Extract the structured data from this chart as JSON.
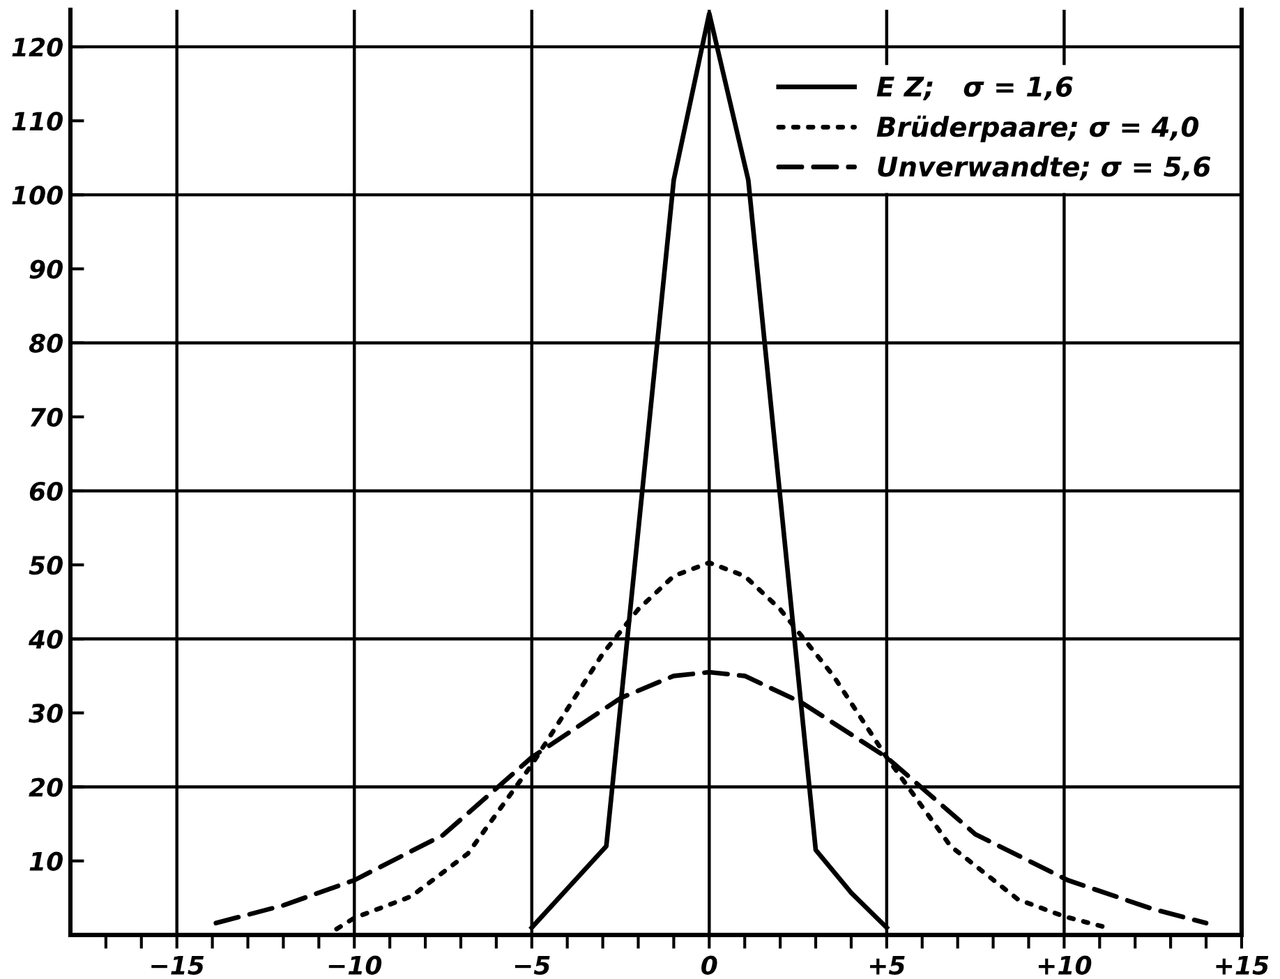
{
  "chart_data": {
    "type": "line",
    "xlim": [
      -18,
      15
    ],
    "ylim": [
      0,
      125
    ],
    "xticks": [
      {
        "value": -17,
        "label": null
      },
      {
        "value": -16,
        "label": null
      },
      {
        "value": -15,
        "label": "−15"
      },
      {
        "value": -14,
        "label": null
      },
      {
        "value": -13,
        "label": null
      },
      {
        "value": -12,
        "label": null
      },
      {
        "value": -11,
        "label": null
      },
      {
        "value": -10,
        "label": "−10"
      },
      {
        "value": -9,
        "label": null
      },
      {
        "value": -8,
        "label": null
      },
      {
        "value": -7,
        "label": null
      },
      {
        "value": -6,
        "label": null
      },
      {
        "value": -5,
        "label": "−5"
      },
      {
        "value": -4,
        "label": null
      },
      {
        "value": -3,
        "label": null
      },
      {
        "value": -2,
        "label": null
      },
      {
        "value": -1,
        "label": null
      },
      {
        "value": 0,
        "label": "0"
      },
      {
        "value": 1,
        "label": null
      },
      {
        "value": 2,
        "label": null
      },
      {
        "value": 3,
        "label": null
      },
      {
        "value": 4,
        "label": null
      },
      {
        "value": 5,
        "label": "+5"
      },
      {
        "value": 6,
        "label": null
      },
      {
        "value": 7,
        "label": null
      },
      {
        "value": 8,
        "label": null
      },
      {
        "value": 9,
        "label": null
      },
      {
        "value": 10,
        "label": "+10"
      },
      {
        "value": 11,
        "label": null
      },
      {
        "value": 12,
        "label": null
      },
      {
        "value": 13,
        "label": null
      },
      {
        "value": 14,
        "label": null
      },
      {
        "value": 15,
        "label": "+15"
      }
    ],
    "yticks": [
      10,
      20,
      30,
      40,
      50,
      60,
      70,
      80,
      90,
      100,
      110,
      120
    ],
    "legend": "top right",
    "marker": "none",
    "ref_lines": [
      {
        "axis": "y",
        "value": 20,
        "color": "#000000"
      },
      {
        "axis": "y",
        "value": 40,
        "color": "#000000"
      },
      {
        "axis": "y",
        "value": 60,
        "color": "#000000"
      },
      {
        "axis": "y",
        "value": 80,
        "color": "#000000"
      },
      {
        "axis": "y",
        "value": 100,
        "color": "#000000"
      },
      {
        "axis": "y",
        "value": 120,
        "color": "#000000"
      },
      {
        "axis": "x",
        "value": -15,
        "color": "#000000"
      },
      {
        "axis": "x",
        "value": -10,
        "color": "#000000"
      },
      {
        "axis": "x",
        "value": -5,
        "color": "#000000"
      },
      {
        "axis": "x",
        "value": 0,
        "color": "#000000"
      },
      {
        "axis": "x",
        "value": 5,
        "color": "#000000"
      },
      {
        "axis": "x",
        "value": 10,
        "color": "#000000"
      }
    ],
    "series": [
      {
        "name": "E Z;   σ = 1,6",
        "color": "#000000",
        "line_style": "solid",
        "x": [
          -5,
          -2.9,
          -1,
          0,
          1.1,
          3.0,
          4.0,
          5
        ],
        "values": [
          1,
          12,
          102,
          124.5,
          102,
          11.5,
          5.7,
          1
        ]
      },
      {
        "name": "Brüderpaare; σ = 4,0",
        "color": "#000000",
        "line_style": "dotted",
        "x": [
          -10.5,
          -10,
          -8.4,
          -6.8,
          -5,
          -3,
          -2,
          -1,
          0,
          1,
          2,
          2.5,
          3.5,
          5,
          6.8,
          8.7,
          10,
          11.2
        ],
        "values": [
          0.8,
          2.3,
          5.2,
          11,
          23,
          38,
          44,
          48.5,
          50.3,
          48.5,
          44,
          41,
          35,
          24,
          12,
          4.8,
          2.5,
          1
        ]
      },
      {
        "name": "Unverwandte; σ = 5,6",
        "color": "#000000",
        "line_style": "dashed",
        "x": [
          -13.9,
          -12,
          -10,
          -7.5,
          -5,
          -2.5,
          -1,
          0,
          1,
          2.6,
          5,
          7.5,
          10.1,
          12.5,
          14.0
        ],
        "values": [
          1.6,
          4,
          7.4,
          13.5,
          24,
          32,
          35,
          35.5,
          35,
          31.4,
          24,
          13.6,
          7.4,
          3.5,
          1.6
        ]
      }
    ]
  }
}
